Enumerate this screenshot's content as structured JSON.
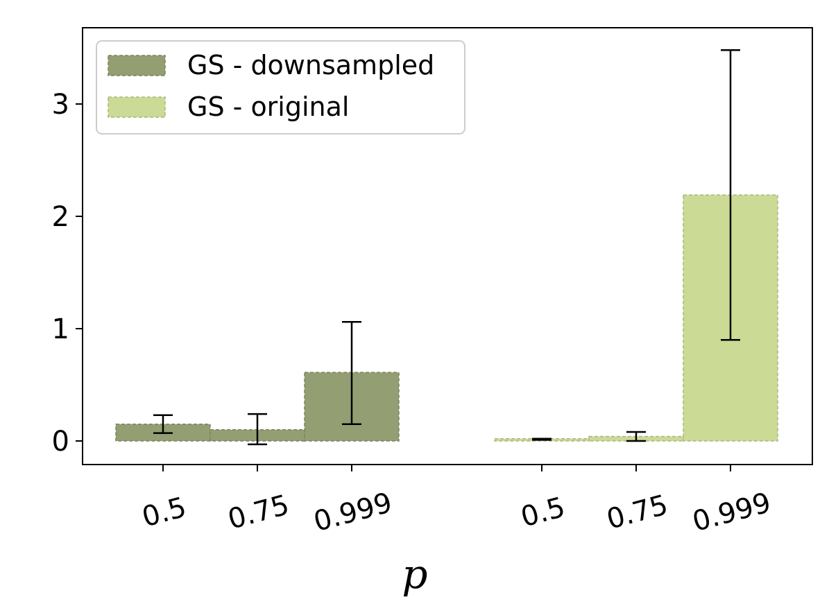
{
  "chart_data": {
    "type": "bar",
    "xlabel": "p",
    "ylabel": "",
    "title": "",
    "ylim": [
      -0.2,
      3.55
    ],
    "yticks": [
      0,
      1,
      2,
      3
    ],
    "grid": false,
    "legend_position": "top-left",
    "groups": [
      {
        "series": "GS - downsampled",
        "categories": [
          "0.5",
          "0.75",
          "0.999"
        ],
        "values": [
          0.15,
          0.1,
          0.61
        ],
        "errors_low": [
          0.07,
          -0.03,
          0.15
        ],
        "errors_high": [
          0.23,
          0.24,
          1.06
        ]
      },
      {
        "series": "GS - original",
        "categories": [
          "0.5",
          "0.75",
          "0.999"
        ],
        "values": [
          0.02,
          0.04,
          2.19
        ],
        "errors_low": [
          0.01,
          0.0,
          0.9
        ],
        "errors_high": [
          0.02,
          0.08,
          3.48
        ]
      }
    ],
    "series": [
      {
        "name": "GS - downsampled",
        "color": "#939f73"
      },
      {
        "name": "GS - original",
        "color": "#cbdb96"
      }
    ]
  }
}
